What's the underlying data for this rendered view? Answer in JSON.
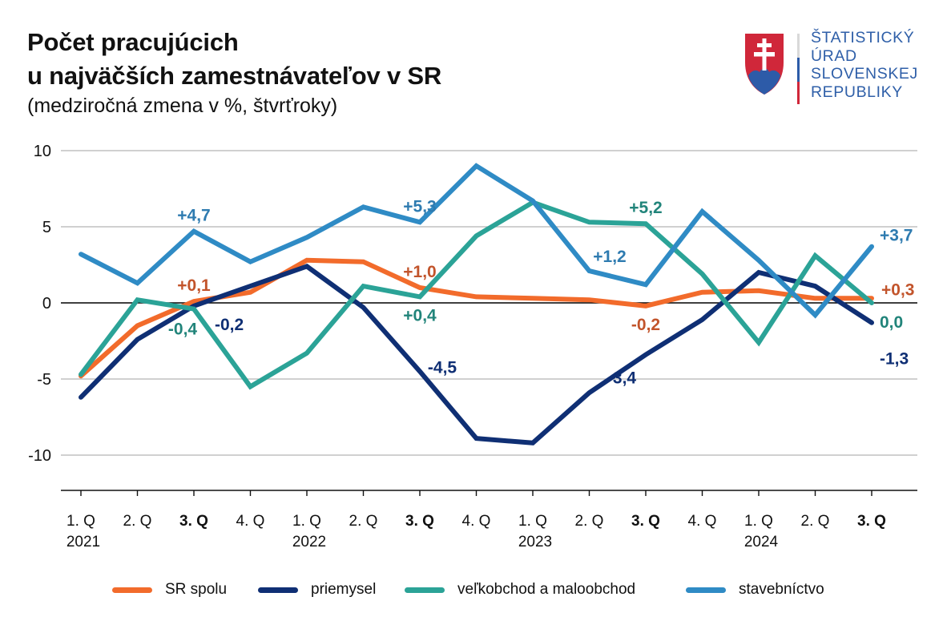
{
  "header": {
    "title_line1": "Počet pracujúcich",
    "title_line2": "u najväčších zamestnávateľov v SR",
    "subtitle": "(medziročná zmena v %, štvrťroky)"
  },
  "logo": {
    "icon": "slovak-coat-of-arms-icon",
    "lines": [
      "ŠTATISTICKÝ",
      "ÚRAD",
      "SLOVENSKEJ",
      "REPUBLIKY"
    ],
    "colors": {
      "text": "#2f5fa8",
      "shield_red": "#d0273a",
      "shield_blue": "#2d5ba8",
      "cross": "#ffffff"
    }
  },
  "chart_data": {
    "type": "line",
    "title": "Počet pracujúcich u najväčších zamestnávateľov v SR",
    "subtitle": "(medziročná zmena v %, štvrťroky)",
    "xlabel": "",
    "ylabel": "",
    "ylim": [
      -12.5,
      10
    ],
    "yticks": [
      10,
      5,
      0,
      -5,
      -10
    ],
    "ytick_labels": [
      "10",
      "5",
      "0",
      "-5",
      "-10"
    ],
    "grid": true,
    "zero_line": true,
    "categories": [
      "1. Q",
      "2. Q",
      "3. Q",
      "4. Q",
      "1. Q",
      "2. Q",
      "3. Q",
      "4. Q",
      "1. Q",
      "2. Q",
      "3. Q",
      "4. Q",
      "1. Q",
      "2. Q",
      "3. Q"
    ],
    "category_bold": [
      false,
      false,
      true,
      false,
      false,
      false,
      true,
      false,
      false,
      false,
      true,
      false,
      false,
      false,
      true
    ],
    "years": [
      "2021",
      "",
      "",
      "",
      "2022",
      "",
      "",
      "",
      "2023",
      "",
      "",
      "",
      "2024",
      "",
      ""
    ],
    "series": [
      {
        "name": "SR spolu",
        "color": "#f26b2b",
        "label_color": "#c2542b",
        "values": [
          -4.8,
          -1.5,
          0.1,
          0.7,
          2.8,
          2.7,
          1.0,
          0.4,
          0.3,
          0.2,
          -0.2,
          0.7,
          0.8,
          0.3,
          0.3
        ]
      },
      {
        "name": "priemysel",
        "color": "#0f2f74",
        "label_color": "#0f2f74",
        "values": [
          -6.2,
          -2.4,
          -0.2,
          1.1,
          2.4,
          -0.3,
          -4.5,
          -8.9,
          -9.2,
          -5.9,
          -3.4,
          -1.1,
          2.0,
          1.1,
          -1.3
        ]
      },
      {
        "name": "veľkobchod a maloobchod",
        "color": "#2ba397",
        "label_color": "#21847a",
        "values": [
          -4.7,
          0.2,
          -0.4,
          -5.5,
          -3.3,
          1.1,
          0.4,
          4.4,
          6.6,
          5.3,
          5.2,
          1.9,
          -2.6,
          3.1,
          0.0
        ]
      },
      {
        "name": "stavebníctvo",
        "color": "#2f8bc5",
        "label_color": "#2e7bb0",
        "values": [
          3.2,
          1.3,
          4.7,
          2.7,
          4.3,
          6.3,
          5.3,
          9.0,
          6.7,
          2.1,
          1.2,
          6.0,
          2.8,
          -0.8,
          3.7
        ]
      }
    ],
    "annotations": [
      {
        "series": "stavebníctvo",
        "index": 2,
        "text": "+4,7",
        "pos": "above"
      },
      {
        "series": "SR spolu",
        "index": 2,
        "text": "+0,1",
        "pos": "above"
      },
      {
        "series": "priemysel",
        "index": 2,
        "text": "-0,2",
        "pos": "below-right"
      },
      {
        "series": "veľkobchod a maloobchod",
        "index": 2,
        "text": "-0,4",
        "pos": "below-left"
      },
      {
        "series": "stavebníctvo",
        "index": 6,
        "text": "+5,3",
        "pos": "above"
      },
      {
        "series": "SR spolu",
        "index": 6,
        "text": "+1,0",
        "pos": "above"
      },
      {
        "series": "veľkobchod a maloobchod",
        "index": 6,
        "text": "+0,4",
        "pos": "below"
      },
      {
        "series": "priemysel",
        "index": 6,
        "text": "-4,5",
        "pos": "right"
      },
      {
        "series": "veľkobchod a maloobchod",
        "index": 10,
        "text": "+5,2",
        "pos": "above"
      },
      {
        "series": "stavebníctvo",
        "index": 10,
        "text": "+1,2",
        "pos": "above-left"
      },
      {
        "series": "SR spolu",
        "index": 10,
        "text": "-0,2",
        "pos": "below"
      },
      {
        "series": "priemysel",
        "index": 10,
        "text": "-3,4",
        "pos": "below"
      },
      {
        "series": "stavebníctvo",
        "index": 14,
        "text": "+3,7",
        "pos": "right"
      },
      {
        "series": "SR spolu",
        "index": 14,
        "text": "+0,3",
        "pos": "right"
      },
      {
        "series": "veľkobchod a maloobchod",
        "index": 14,
        "text": "0,0",
        "pos": "right"
      },
      {
        "series": "priemysel",
        "index": 14,
        "text": "-1,3",
        "pos": "right"
      }
    ],
    "legend": {
      "placement": "bottom",
      "entries": [
        "SR spolu",
        "priemysel",
        "veľkobchod a maloobchod",
        "stavebníctvo"
      ]
    }
  }
}
